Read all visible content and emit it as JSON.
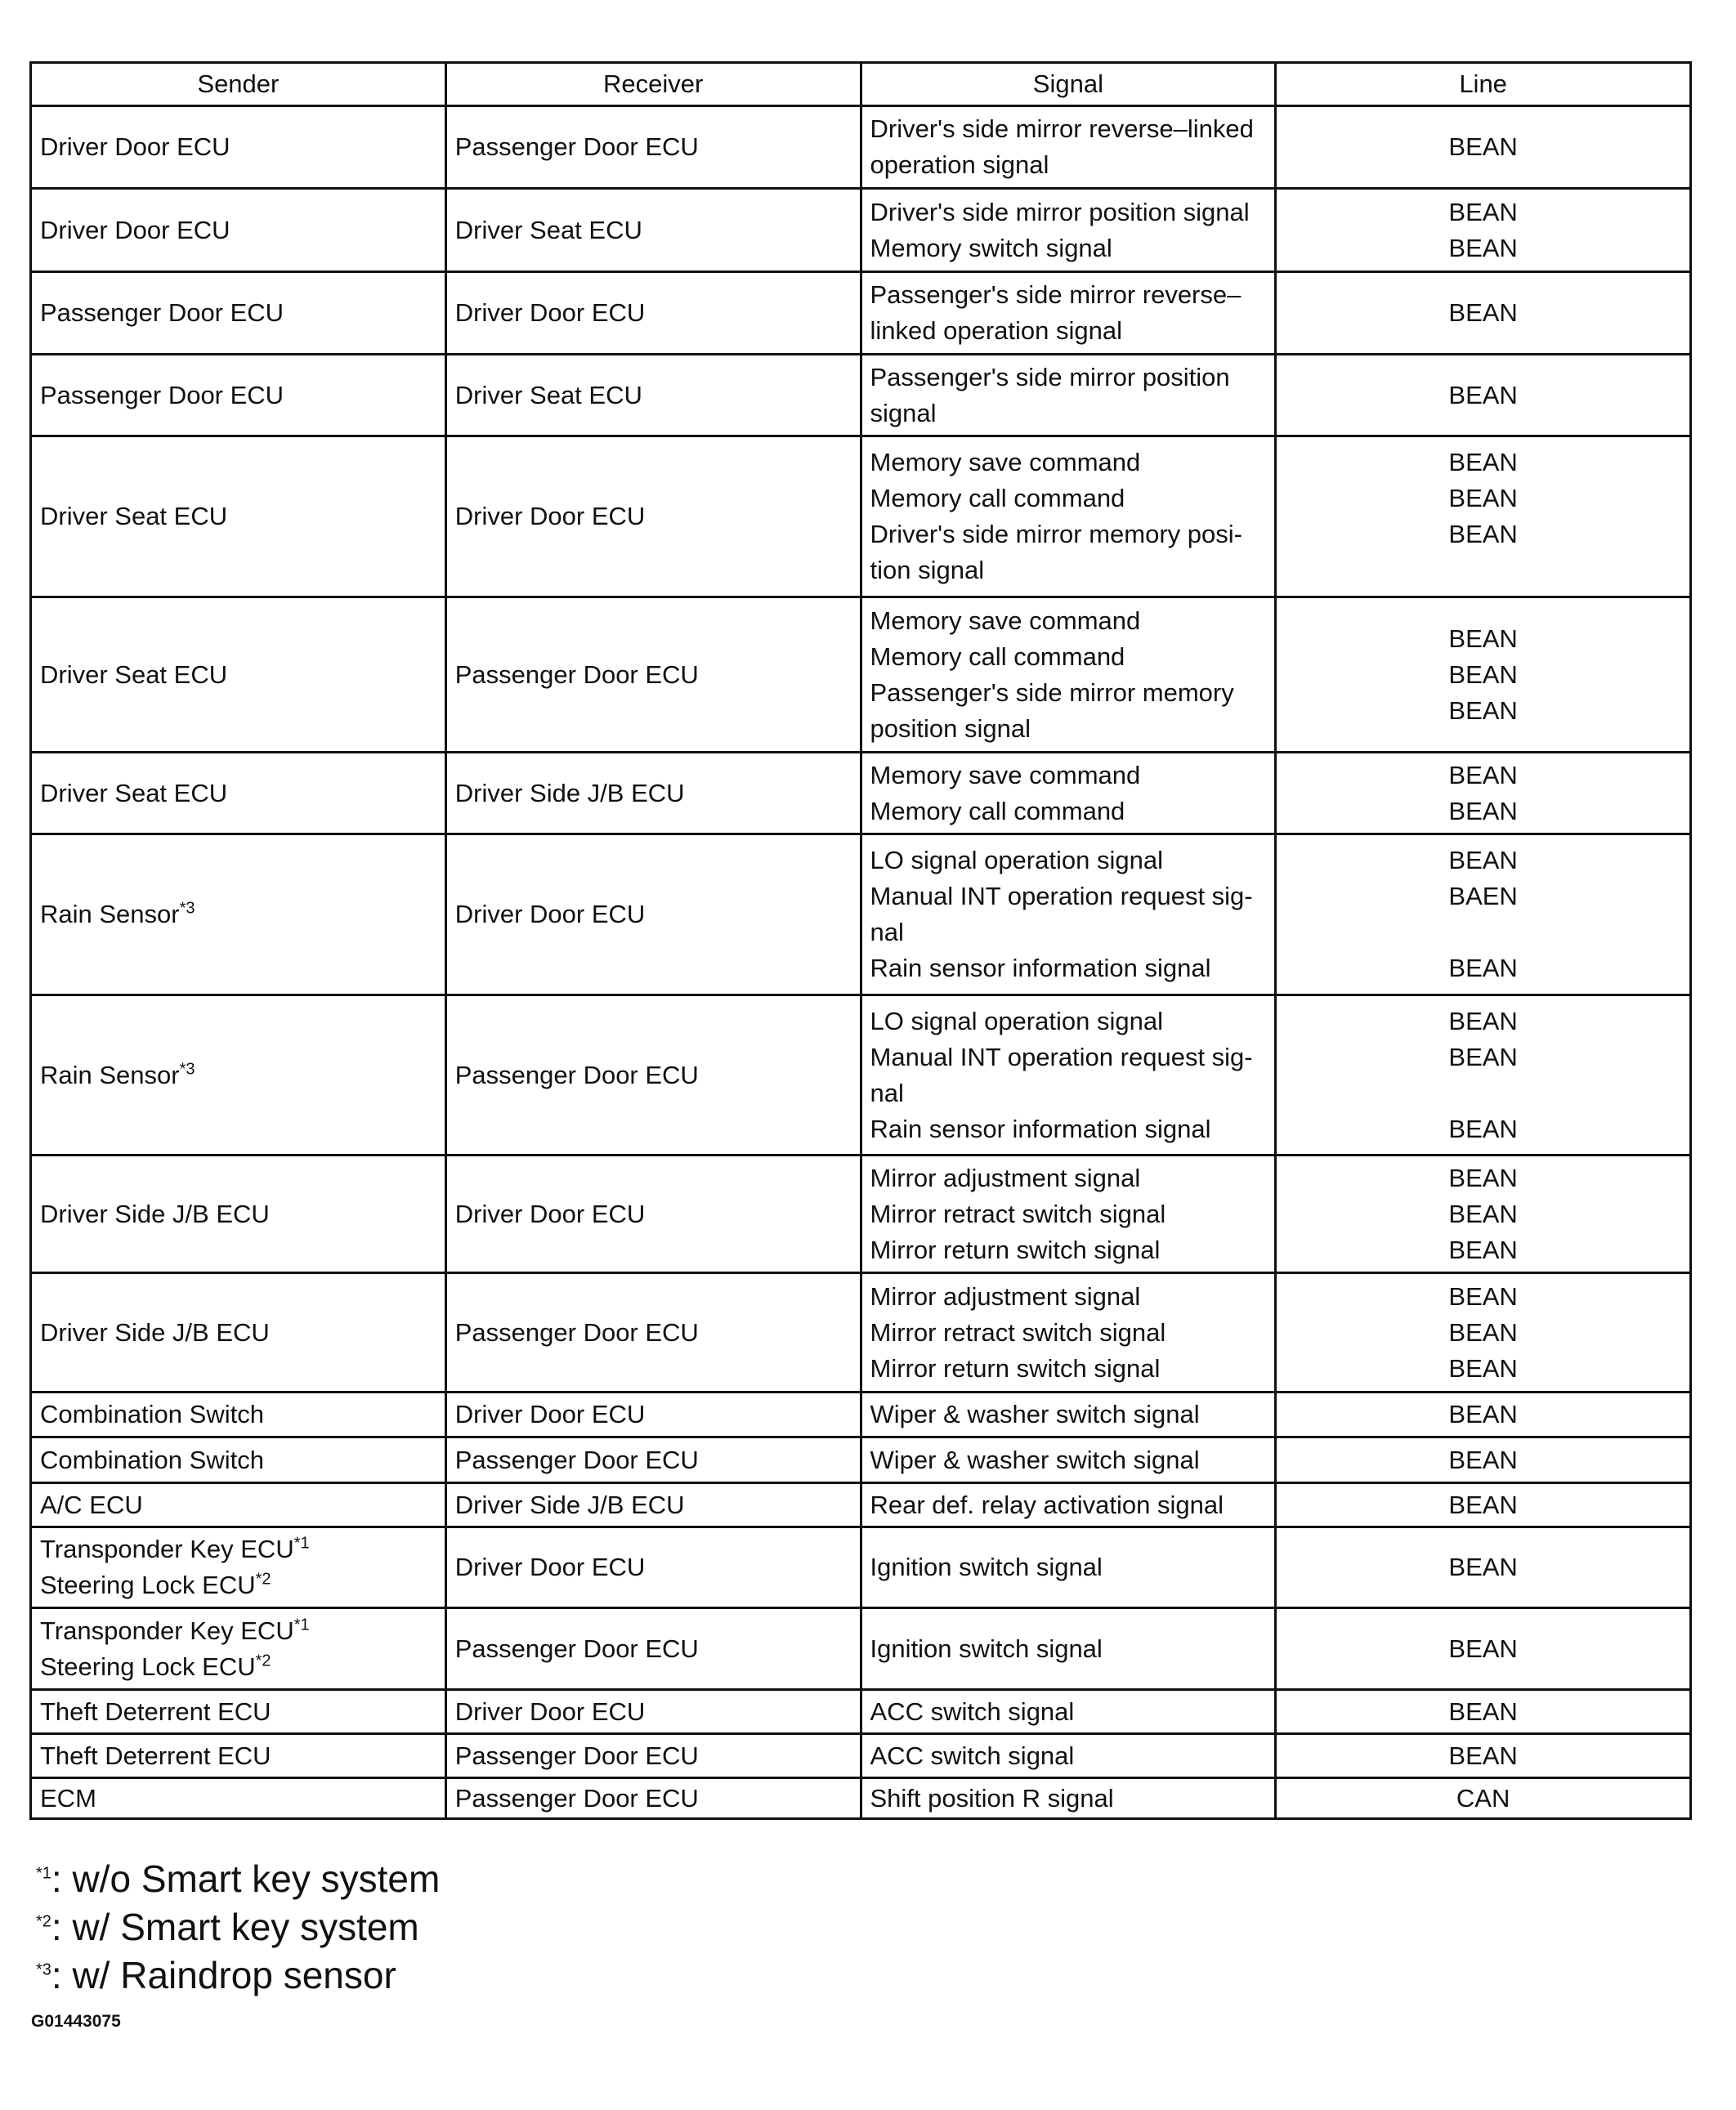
{
  "headers": [
    "Sender",
    "Receiver",
    "Signal",
    "Line"
  ],
  "rows": [
    {
      "sender": [
        "Driver Door ECU"
      ],
      "receiver": "Passenger Door ECU",
      "signal": [
        "Driver's side mirror reverse–linked",
        "operation signal"
      ],
      "line": [
        "BEAN"
      ]
    },
    {
      "sender": [
        "Driver Door ECU"
      ],
      "receiver": "Driver Seat ECU",
      "signal": [
        "Driver's side mirror position signal",
        "Memory switch signal"
      ],
      "line": [
        "BEAN",
        "BEAN"
      ]
    },
    {
      "sender": [
        "Passenger Door ECU"
      ],
      "receiver": "Driver Door ECU",
      "signal": [
        "Passenger's side mirror reverse–",
        "linked operation signal"
      ],
      "line": [
        "BEAN"
      ]
    },
    {
      "sender": [
        "Passenger Door ECU"
      ],
      "receiver": "Driver Seat ECU",
      "signal": [
        "Passenger's side mirror position",
        "signal"
      ],
      "line": [
        "BEAN"
      ]
    },
    {
      "sender": [
        "Driver Seat ECU"
      ],
      "receiver": "Driver Door ECU",
      "signal": [
        "Memory save command",
        "Memory call command",
        "Driver's side mirror memory posi-",
        "tion signal"
      ],
      "line": [
        "BEAN",
        "BEAN",
        "BEAN",
        ""
      ]
    },
    {
      "sender": [
        "Driver Seat ECU"
      ],
      "receiver": "Passenger Door ECU",
      "signal": [
        "Memory save command",
        "Memory call command",
        "Passenger's side mirror memory",
        "position signal"
      ],
      "line": [
        "BEAN",
        "BEAN",
        "BEAN"
      ]
    },
    {
      "sender": [
        "Driver Seat ECU"
      ],
      "receiver": "Driver Side J/B ECU",
      "signal": [
        "Memory save command",
        "Memory call command"
      ],
      "line": [
        "BEAN",
        "BEAN"
      ]
    },
    {
      "sender": [
        "Rain Sensor"
      ],
      "sender_notes": [
        "*3"
      ],
      "receiver": "Driver Door ECU",
      "signal": [
        "LO signal operation signal",
        "Manual INT operation request sig-",
        "nal",
        "Rain sensor information signal"
      ],
      "line": [
        "BEAN",
        "BAEN",
        "",
        "BEAN"
      ]
    },
    {
      "sender": [
        "Rain Sensor"
      ],
      "sender_notes": [
        "*3"
      ],
      "receiver": "Passenger Door ECU",
      "signal": [
        "LO signal operation signal",
        "Manual INT operation request sig-",
        "nal",
        "Rain sensor information signal"
      ],
      "line": [
        "BEAN",
        "BEAN",
        "",
        "BEAN"
      ]
    },
    {
      "sender": [
        "Driver Side J/B ECU"
      ],
      "receiver": "Driver Door ECU",
      "signal": [
        "Mirror adjustment signal",
        "Mirror retract switch signal",
        "Mirror return switch signal"
      ],
      "line": [
        "BEAN",
        "BEAN",
        "BEAN"
      ]
    },
    {
      "sender": [
        "Driver Side J/B ECU"
      ],
      "receiver": "Passenger Door ECU",
      "signal": [
        "Mirror adjustment signal",
        "Mirror retract switch signal",
        "Mirror return switch signal"
      ],
      "line": [
        "BEAN",
        "BEAN",
        "BEAN"
      ]
    },
    {
      "sender": [
        "Combination Switch"
      ],
      "receiver": "Driver Door ECU",
      "signal": [
        "Wiper & washer switch signal"
      ],
      "line": [
        "BEAN"
      ]
    },
    {
      "sender": [
        "Combination Switch"
      ],
      "receiver": "Passenger Door ECU",
      "signal": [
        "Wiper & washer switch signal"
      ],
      "line": [
        "BEAN"
      ]
    },
    {
      "sender": [
        "A/C ECU"
      ],
      "receiver": "Driver Side J/B ECU",
      "signal": [
        "Rear def. relay activation signal"
      ],
      "line": [
        "BEAN"
      ]
    },
    {
      "sender": [
        "Transponder Key ECU",
        "Steering Lock ECU"
      ],
      "sender_notes": [
        "*1",
        "*2"
      ],
      "receiver": "Driver Door ECU",
      "signal": [
        "Ignition switch signal"
      ],
      "line": [
        "BEAN"
      ]
    },
    {
      "sender": [
        "Transponder Key ECU",
        "Steering Lock ECU"
      ],
      "sender_notes": [
        "*1",
        "*2"
      ],
      "receiver": "Passenger Door ECU",
      "signal": [
        "Ignition switch signal"
      ],
      "line": [
        "BEAN"
      ]
    },
    {
      "sender": [
        "Theft Deterrent ECU"
      ],
      "receiver": "Driver Door ECU",
      "signal": [
        "ACC switch signal"
      ],
      "line": [
        "BEAN"
      ]
    },
    {
      "sender": [
        "Theft Deterrent ECU"
      ],
      "receiver": "Passenger Door ECU",
      "signal": [
        "ACC switch signal"
      ],
      "line": [
        "BEAN"
      ]
    },
    {
      "sender": [
        "ECM"
      ],
      "receiver": "Passenger Door ECU",
      "signal": [
        "Shift position R signal"
      ],
      "line": [
        "CAN"
      ]
    }
  ],
  "footnotes": [
    {
      "mark": "*1",
      "text": ": w/o Smart key system"
    },
    {
      "mark": "*2",
      "text": ": w/ Smart key system"
    },
    {
      "mark": "*3",
      "text": ": w/ Raindrop sensor"
    }
  ],
  "figure_code": "G01443075"
}
